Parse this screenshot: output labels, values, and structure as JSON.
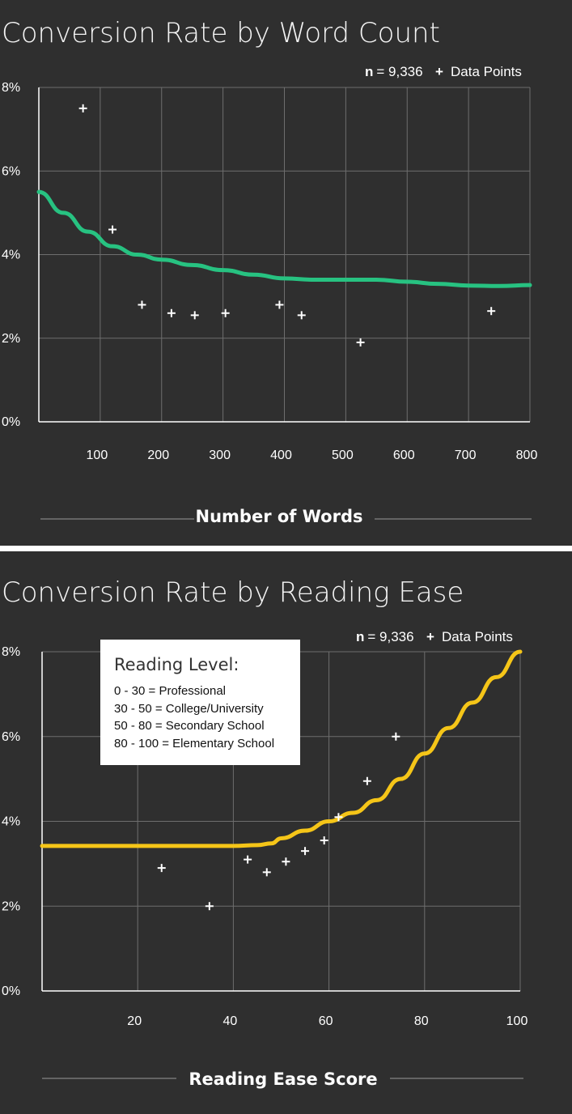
{
  "chart_data": [
    {
      "type": "scatter",
      "title": "Conversion Rate by Word Count",
      "n_label": "n",
      "n_value": "= 9,336",
      "legend_marker": "+",
      "legend_label": "Data Points",
      "xlabel": "Number of Words",
      "xlim": [
        0,
        800
      ],
      "ylim": [
        0,
        8
      ],
      "x_ticks": [
        100,
        200,
        300,
        400,
        500,
        600,
        700,
        800
      ],
      "y_ticks": [
        {
          "value": 0,
          "label": "0%"
        },
        {
          "value": 2,
          "label": "2%"
        },
        {
          "value": 4,
          "label": "4%"
        },
        {
          "value": 6,
          "label": "6%"
        },
        {
          "value": 8,
          "label": "8%"
        }
      ],
      "series": [
        {
          "kind": "points",
          "color": "#ffffff",
          "points": [
            [
              72,
              7.5
            ],
            [
              120,
              4.6
            ],
            [
              168,
              2.8
            ],
            [
              216,
              2.6
            ],
            [
              254,
              2.55
            ],
            [
              304,
              2.6
            ],
            [
              392,
              2.8
            ],
            [
              428,
              2.55
            ],
            [
              524,
              1.9
            ],
            [
              737,
              2.65
            ]
          ]
        },
        {
          "kind": "trend",
          "color": "#27c281",
          "points": [
            [
              0,
              5.5
            ],
            [
              40,
              5.0
            ],
            [
              80,
              4.55
            ],
            [
              120,
              4.2
            ],
            [
              160,
              4.0
            ],
            [
              200,
              3.88
            ],
            [
              250,
              3.75
            ],
            [
              300,
              3.63
            ],
            [
              350,
              3.52
            ],
            [
              400,
              3.43
            ],
            [
              450,
              3.4
            ],
            [
              500,
              3.4
            ],
            [
              550,
              3.4
            ],
            [
              600,
              3.35
            ],
            [
              650,
              3.3
            ],
            [
              700,
              3.26
            ],
            [
              750,
              3.25
            ],
            [
              800,
              3.27
            ]
          ]
        }
      ]
    },
    {
      "type": "scatter",
      "title": "Conversion Rate by Reading Ease",
      "n_label": "n",
      "n_value": "= 9,336",
      "legend_marker": "+",
      "legend_label": "Data Points",
      "xlabel": "Reading Ease Score",
      "xlim": [
        0,
        100
      ],
      "ylim": [
        0,
        8
      ],
      "x_ticks": [
        20,
        40,
        60,
        80,
        100
      ],
      "y_ticks": [
        {
          "value": 0,
          "label": "0%"
        },
        {
          "value": 2,
          "label": "2%"
        },
        {
          "value": 4,
          "label": "4%"
        },
        {
          "value": 6,
          "label": "6%"
        },
        {
          "value": 8,
          "label": "8%"
        }
      ],
      "reading_level_box": {
        "heading": "Reading Level:",
        "items": [
          "0 - 30 = Professional",
          "30 - 50 = College/University",
          "50 - 80 = Secondary School",
          "80 - 100 = Elementary School"
        ]
      },
      "series": [
        {
          "kind": "points",
          "color": "#ffffff",
          "points": [
            [
              25,
              2.9
            ],
            [
              35,
              2.0
            ],
            [
              43,
              3.1
            ],
            [
              47,
              2.8
            ],
            [
              51,
              3.05
            ],
            [
              55,
              3.3
            ],
            [
              59,
              3.55
            ],
            [
              62,
              4.1
            ],
            [
              68,
              4.95
            ],
            [
              74,
              6.0
            ]
          ]
        },
        {
          "kind": "trend",
          "color": "#f5c518",
          "points": [
            [
              0,
              3.42
            ],
            [
              20,
              3.42
            ],
            [
              30,
              3.42
            ],
            [
              40,
              3.42
            ],
            [
              45,
              3.44
            ],
            [
              48,
              3.48
            ],
            [
              50,
              3.6
            ],
            [
              55,
              3.78
            ],
            [
              60,
              4.0
            ],
            [
              65,
              4.2
            ],
            [
              70,
              4.5
            ],
            [
              75,
              5.0
            ],
            [
              80,
              5.6
            ],
            [
              85,
              6.2
            ],
            [
              90,
              6.8
            ],
            [
              95,
              7.4
            ],
            [
              100,
              8.0
            ]
          ]
        }
      ]
    }
  ]
}
